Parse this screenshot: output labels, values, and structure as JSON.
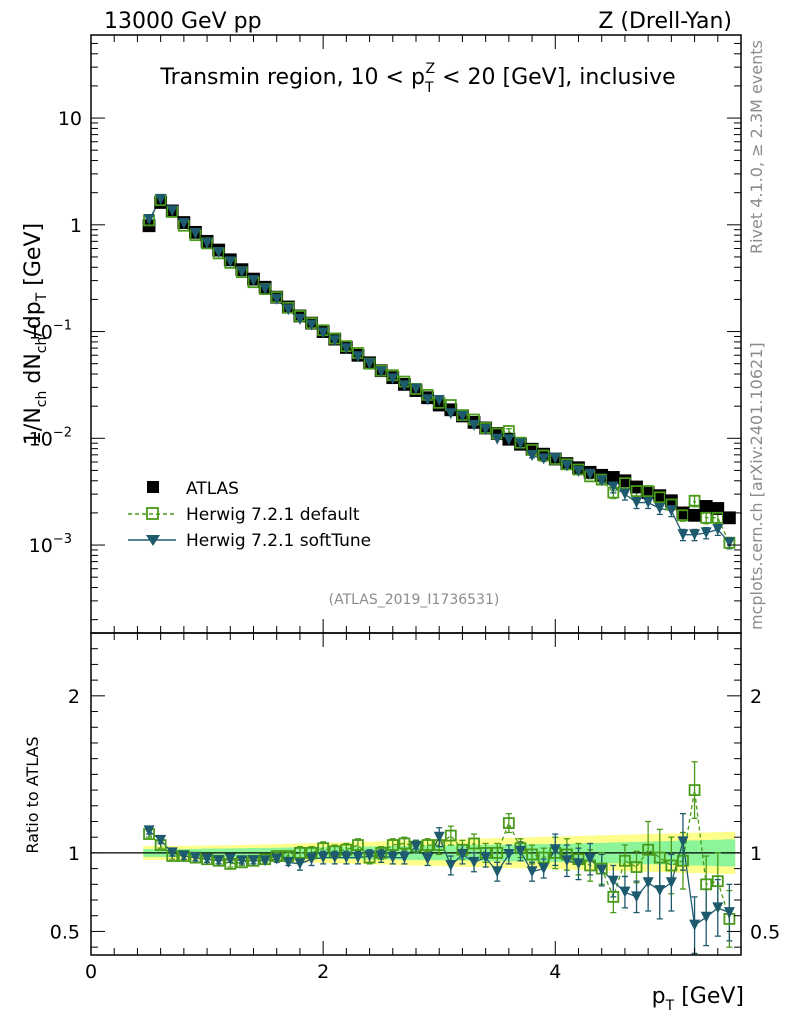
{
  "header": {
    "left": "13000 GeV pp",
    "right": "Z (Drell-Yan)"
  },
  "side_labels": {
    "rivet": "Rivet 4.1.0, ≥ 2.3M events",
    "mcplots": "mcplots.cern.ch [arXiv:2401.10621]"
  },
  "chart_data": {
    "type": "scatter",
    "title": "Transmin region, 10 < p_T^Z < 20 [GeV], inclusive",
    "analysis": "(ATLAS_2019_I1736531)",
    "xlabel": "p_T [GeV]",
    "ylabel": "1/N_ch dN_ch/dp_T [GeV]",
    "ratio_ylabel": "Ratio to ATLAS",
    "xlim": [
      0,
      5.6
    ],
    "ylim": [
      0.00015,
      60
    ],
    "yscale": "log",
    "ratio_ylim": [
      0.35,
      2.4
    ],
    "x_ticks": [
      "0",
      "2",
      "4"
    ],
    "y_ticks": [
      "10^-3",
      "10^-2",
      "10^-1",
      "1",
      "10"
    ],
    "ratio_ticks": [
      "0.5",
      "1",
      "2"
    ],
    "legend_position": "lower-left",
    "x": [
      0.5,
      0.6,
      0.7,
      0.8,
      0.9,
      1.0,
      1.1,
      1.2,
      1.3,
      1.4,
      1.5,
      1.6,
      1.7,
      1.8,
      1.9,
      2.0,
      2.1,
      2.2,
      2.3,
      2.4,
      2.5,
      2.6,
      2.7,
      2.8,
      2.9,
      3.0,
      3.1,
      3.2,
      3.3,
      3.4,
      3.5,
      3.6,
      3.7,
      3.8,
      3.9,
      4.0,
      4.1,
      4.2,
      4.3,
      4.4,
      4.5,
      4.6,
      4.7,
      4.8,
      4.9,
      5.0,
      5.1,
      5.2,
      5.3,
      5.4,
      5.5
    ],
    "series": [
      {
        "name": "ATLAS",
        "values": [
          0.98,
          1.62,
          1.35,
          1.05,
          0.85,
          0.7,
          0.58,
          0.47,
          0.38,
          0.31,
          0.26,
          0.21,
          0.17,
          0.14,
          0.12,
          0.1,
          0.085,
          0.071,
          0.06,
          0.051,
          0.043,
          0.037,
          0.032,
          0.028,
          0.024,
          0.0205,
          0.0185,
          0.0162,
          0.0141,
          0.0125,
          0.0111,
          0.0098,
          0.0088,
          0.0079,
          0.0071,
          0.0064,
          0.0058,
          0.0053,
          0.0048,
          0.0045,
          0.0043,
          0.004,
          0.0035,
          0.0031,
          0.0029,
          0.0026,
          0.002,
          0.0019,
          0.0023,
          0.0022,
          0.0018
        ]
      },
      {
        "name": "Herwig 7.2.1 default",
        "values": [
          1.1,
          1.7,
          1.32,
          0.98,
          0.8,
          0.67,
          0.54,
          0.44,
          0.36,
          0.29,
          0.25,
          0.21,
          0.167,
          0.14,
          0.12,
          0.103,
          0.086,
          0.073,
          0.063,
          0.05,
          0.043,
          0.039,
          0.034,
          0.029,
          0.0255,
          0.0215,
          0.0205,
          0.0165,
          0.015,
          0.0125,
          0.0111,
          0.0117,
          0.0091,
          0.0078,
          0.0069,
          0.0064,
          0.0057,
          0.0051,
          0.0044,
          0.0041,
          0.0031,
          0.0038,
          0.0032,
          0.0032,
          0.0028,
          0.0024,
          0.0019,
          0.0026,
          0.0018,
          0.0018,
          0.00105
        ]
      },
      {
        "name": "Herwig 7.2.1 softTune",
        "values": [
          1.12,
          1.73,
          1.35,
          1.03,
          0.83,
          0.67,
          0.55,
          0.45,
          0.36,
          0.3,
          0.25,
          0.2,
          0.16,
          0.13,
          0.115,
          0.097,
          0.082,
          0.069,
          0.058,
          0.05,
          0.042,
          0.036,
          0.031,
          0.029,
          0.023,
          0.0226,
          0.017,
          0.016,
          0.0132,
          0.0121,
          0.0098,
          0.0097,
          0.0089,
          0.0069,
          0.0064,
          0.0065,
          0.0055,
          0.0049,
          0.0046,
          0.004,
          0.0035,
          0.003,
          0.0025,
          0.0025,
          0.0022,
          0.0021,
          0.00125,
          0.00125,
          0.0013,
          0.0014,
          0.00105
        ]
      }
    ],
    "ratio_series": [
      {
        "name": "Herwig 7.2.1 default",
        "values": [
          1.12,
          1.05,
          0.98,
          0.98,
          0.97,
          0.96,
          0.95,
          0.93,
          0.94,
          0.95,
          0.96,
          0.98,
          0.98,
          1.0,
          1.0,
          1.03,
          1.01,
          1.02,
          1.05,
          0.97,
          1.0,
          1.05,
          1.06,
          1.04,
          1.05,
          1.05,
          1.11,
          1.02,
          1.06,
          1.0,
          1.0,
          1.19,
          1.03,
          0.99,
          0.97,
          1.0,
          0.99,
          0.96,
          0.92,
          0.9,
          0.72,
          0.95,
          0.91,
          1.02,
          0.97,
          0.92,
          0.95,
          1.4,
          0.8,
          0.82,
          0.58
        ]
      },
      {
        "name": "Herwig 7.2.1 softTune",
        "values": [
          1.14,
          1.08,
          1.0,
          0.98,
          0.97,
          0.96,
          0.95,
          0.96,
          0.95,
          0.95,
          0.95,
          0.96,
          0.94,
          0.93,
          0.96,
          0.97,
          0.97,
          0.97,
          0.97,
          0.98,
          0.98,
          0.97,
          0.97,
          1.04,
          0.96,
          1.1,
          0.92,
          0.99,
          0.94,
          0.97,
          0.88,
          0.99,
          1.01,
          0.88,
          0.9,
          1.02,
          0.95,
          0.93,
          0.96,
          0.89,
          0.82,
          0.75,
          0.72,
          0.81,
          0.76,
          0.81,
          1.07,
          0.54,
          0.59,
          0.65,
          0.62
        ]
      }
    ],
    "ratio_bands": {
      "green_halfwidth": [
        0.025,
        0.025,
        0.025,
        0.025,
        0.026,
        0.027,
        0.028,
        0.029,
        0.03,
        0.031,
        0.032,
        0.033,
        0.034,
        0.035,
        0.036,
        0.037,
        0.038,
        0.039,
        0.04,
        0.041,
        0.042,
        0.043,
        0.044,
        0.045,
        0.046,
        0.047,
        0.048,
        0.049,
        0.05,
        0.051,
        0.052,
        0.053,
        0.054,
        0.055,
        0.056,
        0.057,
        0.058,
        0.06,
        0.062,
        0.064,
        0.066,
        0.068,
        0.07,
        0.072,
        0.074,
        0.076,
        0.078,
        0.08,
        0.082,
        0.084,
        0.086
      ],
      "yellow_halfwidth": [
        0.045,
        0.045,
        0.045,
        0.045,
        0.046,
        0.047,
        0.048,
        0.049,
        0.05,
        0.052,
        0.054,
        0.056,
        0.058,
        0.06,
        0.062,
        0.064,
        0.066,
        0.068,
        0.07,
        0.072,
        0.074,
        0.076,
        0.078,
        0.08,
        0.082,
        0.084,
        0.086,
        0.088,
        0.09,
        0.092,
        0.094,
        0.096,
        0.098,
        0.1,
        0.102,
        0.104,
        0.106,
        0.108,
        0.11,
        0.112,
        0.114,
        0.116,
        0.118,
        0.12,
        0.122,
        0.124,
        0.126,
        0.128,
        0.13,
        0.132,
        0.134
      ]
    },
    "colors": {
      "atlas": "#000000",
      "default": "#4a9a1a",
      "softtune": "#1e5a6e",
      "band_green": "#8cf59a",
      "band_yellow": "#fefe8a"
    }
  }
}
